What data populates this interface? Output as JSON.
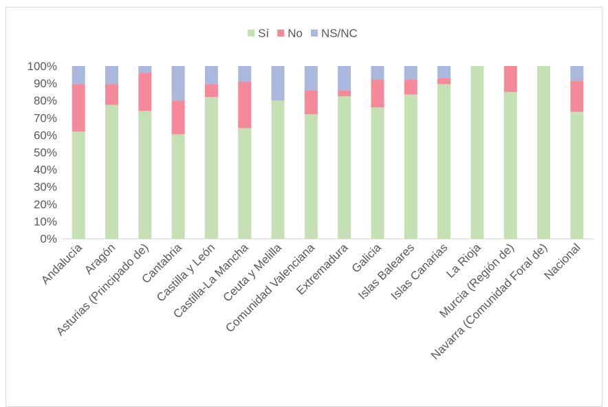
{
  "chart_data": {
    "type": "bar",
    "stacked": true,
    "percent": true,
    "title": "",
    "xlabel": "",
    "ylabel": "",
    "ylim": [
      0,
      100
    ],
    "yticks": [
      "0%",
      "10%",
      "20%",
      "30%",
      "40%",
      "50%",
      "60%",
      "70%",
      "80%",
      "90%",
      "100%"
    ],
    "legend_position": "top",
    "grid": false,
    "categories": [
      "Andalucía",
      "Aragón",
      "Asturias (Principado de)",
      "Cantabria",
      "Castilla y León",
      "Castilla-La Mancha",
      "Ceuta y Melilla",
      "Comunidad Valenciana",
      "Extremadura",
      "Galicia",
      "Islas Baleares",
      "Islas Canarias",
      "La Rioja",
      "Murcia (Región de)",
      "Navarra (Comunidad Foral de)",
      "Nacional"
    ],
    "series": [
      {
        "name": "Sí",
        "color": "#c5e0b4",
        "values": [
          62,
          77.5,
          74,
          60.5,
          82,
          64,
          80,
          72,
          82.5,
          76,
          83.5,
          89.5,
          100,
          85,
          100,
          73.5
        ]
      },
      {
        "name": "No",
        "color": "#f4899a",
        "values": [
          27.5,
          12,
          22,
          19.5,
          7.5,
          27,
          0,
          14,
          3.5,
          16,
          8.5,
          3.5,
          0,
          15,
          0,
          18
        ]
      },
      {
        "name": "NS/NC",
        "color": "#a9b8dc",
        "values": [
          10.5,
          10.5,
          4,
          20,
          10.5,
          9,
          20,
          14,
          14,
          8,
          8,
          7,
          0,
          0,
          0,
          8.5
        ]
      }
    ]
  }
}
